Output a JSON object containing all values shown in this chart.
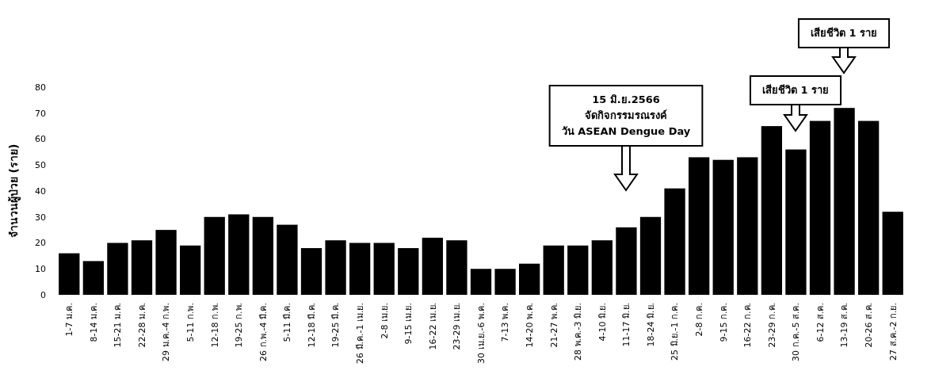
{
  "chart_data": {
    "type": "bar",
    "ylabel": "จำนวนผู้ป่วย (ราย)",
    "categories": [
      "1-7 ม.ค.",
      "8-14 ม.ค.",
      "15-21 ม.ค.",
      "22-28 ม.ค.",
      "29 ม.ค.-4 ก.พ.",
      "5-11 ก.พ.",
      "12-18 ก.พ.",
      "19-25 ก.พ.",
      "26 ก.พ.-4 มี.ค.",
      "5-11 มี.ค.",
      "12-18 มี.ค.",
      "19-25 มี.ค.",
      "26 มี.ค.-1 เม.ย.",
      "2-8 เม.ย.",
      "9-15 เม.ย.",
      "16-22 เม.ย.",
      "23-29 เม.ย.",
      "30 เม.ย.-6 พ.ค.",
      "7-13 พ.ค.",
      "14-20 พ.ค.",
      "21-27 พ.ค.",
      "28 พ.ค.-3 มิ.ย.",
      "4-10 มิ.ย.",
      "11-17 มิ.ย.",
      "18-24 มิ.ย.",
      "25 มิ.ย.-1 ก.ค.",
      "2-8 ก.ค.",
      "9-15 ก.ค.",
      "16-22 ก.ค.",
      "23-29 ก.ค.",
      "30 ก.ค.-5 ส.ค.",
      "6-12 ส.ค.",
      "13-19 ส.ค.",
      "20-26 ส.ค.",
      "27 ส.ค.-2 ก.ย."
    ],
    "values": [
      16,
      13,
      20,
      21,
      25,
      19,
      30,
      31,
      30,
      27,
      18,
      21,
      20,
      20,
      18,
      22,
      21,
      10,
      10,
      12,
      19,
      19,
      21,
      26,
      30,
      41,
      53,
      52,
      53,
      65,
      56,
      67,
      72,
      67,
      32
    ],
    "color": "#000000",
    "ylim": [
      0,
      80
    ],
    "yticks": [
      0,
      10,
      20,
      30,
      40,
      50,
      60,
      70,
      80
    ],
    "annotations": [
      "15 มิ.ย.2566\nจัดกิจกรรมรณรงค์\nวัน ASEAN Dengue Day",
      "เสียชีวิต 1 ราย",
      "เสียชีวิต 1 ราย"
    ]
  }
}
